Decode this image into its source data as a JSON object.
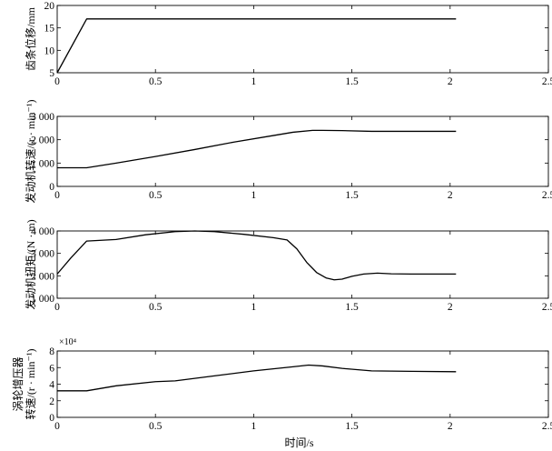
{
  "xlabel": "时间/s",
  "chart_data": [
    {
      "type": "line",
      "ylabel_lines": [
        "齿条位移/mm"
      ],
      "xlim": [
        0,
        2.5
      ],
      "ylim": [
        5,
        20
      ],
      "xticks": [
        0,
        0.5,
        1,
        1.5,
        2,
        2.5
      ],
      "xtick_labels": [
        "0",
        "0.5",
        "1",
        "1.5",
        "2",
        "2.5"
      ],
      "yticks": [
        5,
        10,
        15,
        20
      ],
      "ytick_labels": [
        "5",
        "10",
        "15",
        "20"
      ],
      "grid": false,
      "series": [
        {
          "color": "#000000",
          "x": [
            0,
            0.15,
            0.3,
            1,
            1.5,
            2.03
          ],
          "y": [
            5,
            17,
            17,
            17,
            17,
            17
          ]
        }
      ]
    },
    {
      "type": "line",
      "ylabel_lines": [
        "发动机转速/(r · min⁻¹)"
      ],
      "xlim": [
        0,
        2.5
      ],
      "ylim": [
        0,
        3000
      ],
      "xticks": [
        0,
        0.5,
        1,
        1.5,
        2,
        2.5
      ],
      "xtick_labels": [
        "0",
        "0.5",
        "1",
        "1.5",
        "2",
        "2.5"
      ],
      "yticks": [
        0,
        1000,
        2000,
        3000
      ],
      "ytick_labels": [
        "0",
        "1 000",
        "2 000",
        "3 000"
      ],
      "grid": false,
      "series": [
        {
          "color": "#000000",
          "x": [
            0,
            0.15,
            0.3,
            0.5,
            0.7,
            0.9,
            1.1,
            1.2,
            1.3,
            1.35,
            1.45,
            1.6,
            1.8,
            2.03
          ],
          "y": [
            800,
            800,
            1000,
            1280,
            1580,
            1900,
            2180,
            2320,
            2400,
            2400,
            2390,
            2360,
            2360,
            2360
          ]
        }
      ]
    },
    {
      "type": "line",
      "ylabel_lines": [
        "发动机扭矩/(N · m)"
      ],
      "xlim": [
        0,
        2.5
      ],
      "ylim": [
        1000,
        4000
      ],
      "xticks": [
        0,
        0.5,
        1,
        1.5,
        2,
        2.5
      ],
      "xtick_labels": [
        "0",
        "0.5",
        "1",
        "1.5",
        "2",
        "2.5"
      ],
      "yticks": [
        1000,
        2000,
        3000,
        4000
      ],
      "ytick_labels": [
        "1 000",
        "2 000",
        "3 000",
        "4 000"
      ],
      "grid": false,
      "series": [
        {
          "color": "#000000",
          "x": [
            0,
            0.07,
            0.15,
            0.3,
            0.45,
            0.6,
            0.7,
            0.8,
            0.95,
            1.1,
            1.17,
            1.22,
            1.27,
            1.32,
            1.37,
            1.41,
            1.45,
            1.5,
            1.56,
            1.63,
            1.7,
            1.8,
            2.03
          ],
          "y": [
            2080,
            2800,
            3550,
            3620,
            3830,
            3970,
            4000,
            3970,
            3850,
            3700,
            3600,
            3200,
            2600,
            2150,
            1900,
            1820,
            1850,
            1980,
            2080,
            2120,
            2090,
            2080,
            2080
          ]
        }
      ]
    },
    {
      "type": "line",
      "ylabel_lines": [
        "涡轮增压器",
        "转速/(r · min⁻¹)"
      ],
      "scale_note": "×10⁴",
      "xlim": [
        0,
        2.5
      ],
      "ylim": [
        0,
        8
      ],
      "xticks": [
        0,
        0.5,
        1,
        1.5,
        2,
        2.5
      ],
      "xtick_labels": [
        "0",
        "0.5",
        "1",
        "1.5",
        "2",
        "2.5"
      ],
      "yticks": [
        0,
        2,
        4,
        6,
        8
      ],
      "ytick_labels": [
        "0",
        "2",
        "4",
        "6",
        "8"
      ],
      "grid": false,
      "series": [
        {
          "color": "#000000",
          "x": [
            0,
            0.15,
            0.3,
            0.5,
            0.6,
            0.8,
            1.0,
            1.2,
            1.28,
            1.35,
            1.45,
            1.6,
            1.8,
            2.03
          ],
          "y": [
            3.2,
            3.2,
            3.8,
            4.3,
            4.4,
            5.0,
            5.6,
            6.1,
            6.3,
            6.2,
            5.9,
            5.6,
            5.55,
            5.5
          ]
        }
      ]
    }
  ]
}
